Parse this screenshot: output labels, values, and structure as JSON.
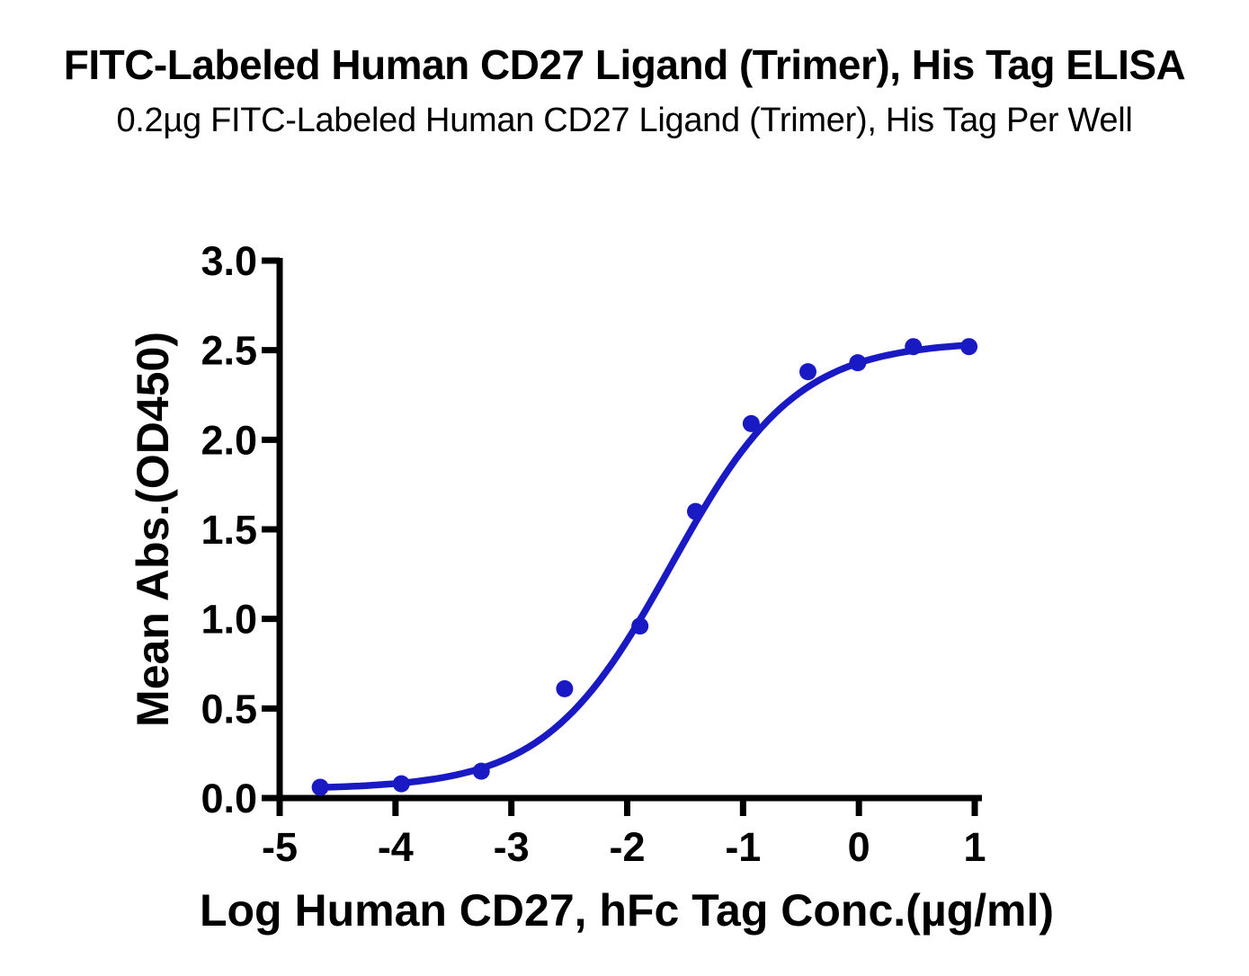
{
  "chart_data": {
    "type": "scatter",
    "title": "FITC-Labeled Human CD27 Ligand (Trimer), His Tag ELISA",
    "subtitle": "0.2µg FITC-Labeled Human CD27 Ligand (Trimer), His Tag Per Well",
    "xlabel": "Log Human CD27, hFc Tag Conc.(µg/ml)",
    "ylabel": "Mean Abs.(OD450)",
    "xlim": [
      -5,
      1
    ],
    "ylim": [
      0,
      3
    ],
    "x_ticks": [
      -5,
      -4,
      -3,
      -2,
      -1,
      0,
      1
    ],
    "x_tick_labels": [
      "-5",
      "-4",
      "-3",
      "-2",
      "-1",
      "0",
      "1"
    ],
    "y_ticks": [
      0,
      0.5,
      1,
      1.5,
      2,
      2.5,
      3
    ],
    "y_tick_labels": [
      "0.0",
      "0.5",
      "1.0",
      "1.5",
      "2.0",
      "2.5",
      "3.0"
    ],
    "grid": false,
    "legend": null,
    "colors": {
      "series": "#1A1AC4",
      "axis": "#000000"
    },
    "series": [
      {
        "name": "FITC-Labeled Human CD27 Ligand (Trimer), His Tag",
        "marker": "circle",
        "x": [
          -4.65,
          -3.95,
          -3.26,
          -2.54,
          -1.89,
          -1.41,
          -0.93,
          -0.44,
          -0.01,
          0.47,
          0.95
        ],
        "y": [
          0.06,
          0.08,
          0.15,
          0.61,
          0.96,
          1.6,
          2.09,
          2.38,
          2.43,
          2.52,
          2.52
        ]
      }
    ],
    "fit_curve": {
      "model": "4PL",
      "bottom": 0.05,
      "top": 2.55,
      "logEC50": -1.62,
      "hill": 0.8
    }
  }
}
